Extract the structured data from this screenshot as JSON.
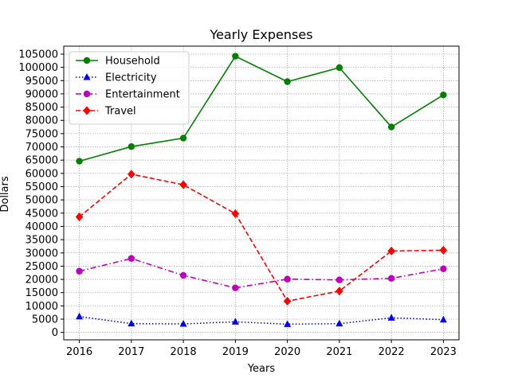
{
  "chart_data": {
    "type": "line",
    "title": "Yearly Expenses",
    "xlabel": "Years",
    "ylabel": "Dollars",
    "x": [
      2016,
      2017,
      2018,
      2019,
      2020,
      2021,
      2022,
      2023
    ],
    "xlim": [
      2015.7,
      2023.3
    ],
    "ylim": [
      -2800,
      108000
    ],
    "yticks": [
      0,
      5000,
      10000,
      15000,
      20000,
      25000,
      30000,
      35000,
      40000,
      45000,
      50000,
      55000,
      60000,
      65000,
      70000,
      75000,
      80000,
      85000,
      90000,
      95000,
      100000,
      105000
    ],
    "grid": true,
    "legend_position": "top-left",
    "series": [
      {
        "name": "Household",
        "color": "#008000",
        "linestyle": "solid",
        "marker": "circle",
        "values": [
          64600,
          70100,
          73300,
          104200,
          94600,
          99900,
          77500,
          89600
        ]
      },
      {
        "name": "Electricity",
        "color": "#0000ff",
        "linestyle": "dotted",
        "marker": "triangle",
        "values": [
          6000,
          3300,
          3200,
          4000,
          3100,
          3300,
          5500,
          4800
        ]
      },
      {
        "name": "Entertainment",
        "color": "#bf00bf",
        "linestyle": "dashdot",
        "marker": "circle",
        "values": [
          23100,
          27900,
          21500,
          16800,
          20100,
          19800,
          20400,
          24000
        ]
      },
      {
        "name": "Travel",
        "color": "#ff0000",
        "linestyle": "dashed",
        "marker": "diamond",
        "values": [
          43600,
          59700,
          55700,
          44800,
          11800,
          15600,
          30700,
          31000
        ]
      }
    ]
  }
}
